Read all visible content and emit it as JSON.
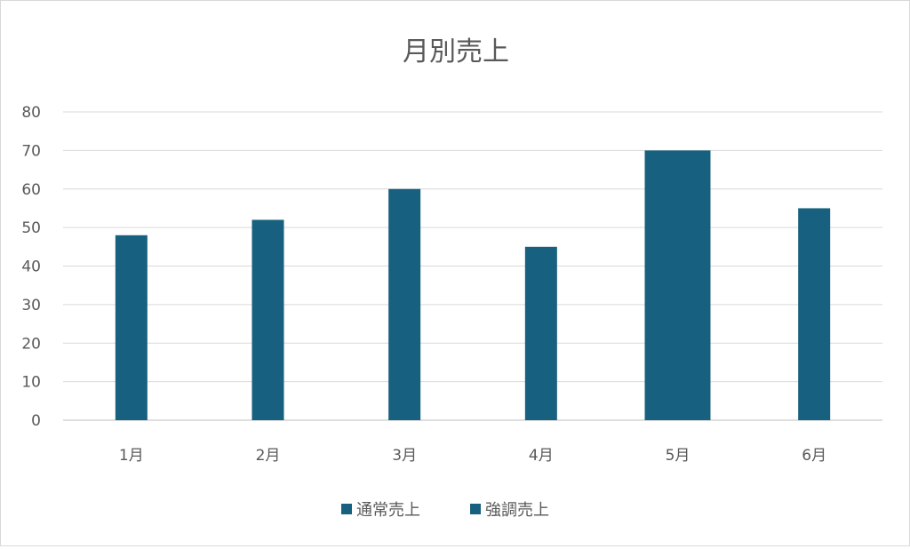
{
  "chart_data": {
    "type": "bar",
    "title": "月別売上",
    "xlabel": "",
    "ylabel": "",
    "categories": [
      "1月",
      "2月",
      "3月",
      "4月",
      "5月",
      "6月"
    ],
    "series": [
      {
        "name": "通常売上",
        "values": [
          48,
          52,
          60,
          45,
          null,
          55
        ],
        "color": "#17607f"
      },
      {
        "name": "強調売上",
        "values": [
          null,
          null,
          null,
          null,
          70,
          null
        ],
        "color": "#17607f"
      }
    ],
    "ylim": [
      0,
      80
    ],
    "yticks": [
      "0",
      "10",
      "20",
      "30",
      "40",
      "50",
      "60",
      "70",
      "80"
    ],
    "grid": true,
    "legend_position": "bottom"
  }
}
